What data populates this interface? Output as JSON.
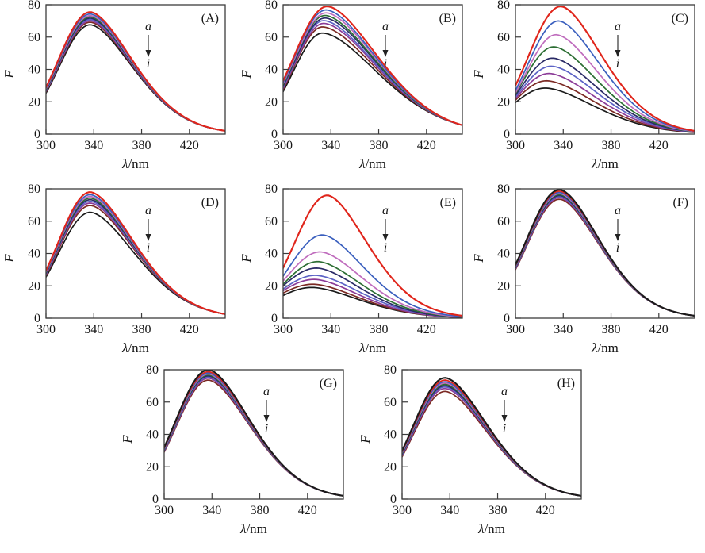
{
  "chart_data": {
    "type": "line",
    "title": "",
    "description": "Fluorescence emission spectra, eight panels (A)-(H), nine curves a to i per panel",
    "axes": {
      "xlabel_symbol": "λ",
      "xlabel_unit": "/nm",
      "ylabel": "F",
      "xticks": [
        300,
        340,
        380,
        420
      ],
      "yticks": [
        0,
        20,
        40,
        60,
        80
      ],
      "xlim": [
        300,
        450
      ],
      "ylim": [
        0,
        80
      ],
      "grid": false
    },
    "annotation": {
      "top": "a",
      "bottom": "i",
      "arrow": "down"
    },
    "palette": {
      "red": "#e0251b",
      "blue": "#3a5fbe",
      "orchid": "#bf6cbd",
      "green": "#2c6e33",
      "navy": "#2a2a66",
      "slate_blue": "#5c63c6",
      "purple": "#8c3c98",
      "dark_red": "#7c2a24",
      "black": "#1a1a1a"
    },
    "panels": [
      {
        "label": "(A)",
        "series": [
          {
            "color": "red",
            "f300": 29,
            "peak": 75.5,
            "lambda_peak": 337,
            "f450": 2
          },
          {
            "color": "blue",
            "f300": 28.5,
            "peak": 74.3,
            "lambda_peak": 337,
            "f450": 2
          },
          {
            "color": "orchid",
            "f300": 28,
            "peak": 73.3,
            "lambda_peak": 337,
            "f450": 2
          },
          {
            "color": "green",
            "f300": 27.6,
            "peak": 72.5,
            "lambda_peak": 337,
            "f450": 2
          },
          {
            "color": "navy",
            "f300": 27.2,
            "peak": 71.7,
            "lambda_peak": 337,
            "f450": 2
          },
          {
            "color": "slate_blue",
            "f300": 26.8,
            "peak": 70.9,
            "lambda_peak": 337,
            "f450": 2
          },
          {
            "color": "purple",
            "f300": 26.4,
            "peak": 70.1,
            "lambda_peak": 337,
            "f450": 2
          },
          {
            "color": "dark_red",
            "f300": 26,
            "peak": 69.2,
            "lambda_peak": 337,
            "f450": 2
          },
          {
            "color": "black",
            "f300": 25.3,
            "peak": 67.6,
            "lambda_peak": 337,
            "f450": 2
          }
        ]
      },
      {
        "label": "(B)",
        "series": [
          {
            "color": "red",
            "f300": 33,
            "peak": 79,
            "lambda_peak": 337,
            "f450": 5.5
          },
          {
            "color": "blue",
            "f300": 32,
            "peak": 76.8,
            "lambda_peak": 336,
            "f450": 5.5
          },
          {
            "color": "orchid",
            "f300": 31.2,
            "peak": 75,
            "lambda_peak": 336,
            "f450": 5.5
          },
          {
            "color": "green",
            "f300": 30.4,
            "peak": 73.4,
            "lambda_peak": 335,
            "f450": 5.5
          },
          {
            "color": "navy",
            "f300": 29.7,
            "peak": 71.8,
            "lambda_peak": 335,
            "f450": 5.5
          },
          {
            "color": "slate_blue",
            "f300": 29,
            "peak": 70.2,
            "lambda_peak": 334,
            "f450": 5.5
          },
          {
            "color": "purple",
            "f300": 28.2,
            "peak": 68.5,
            "lambda_peak": 334,
            "f450": 5.5
          },
          {
            "color": "dark_red",
            "f300": 27.4,
            "peak": 66.3,
            "lambda_peak": 333,
            "f450": 5.5
          },
          {
            "color": "black",
            "f300": 26.2,
            "peak": 62.5,
            "lambda_peak": 333,
            "f450": 5.5
          }
        ]
      },
      {
        "label": "(C)",
        "series": [
          {
            "color": "red",
            "f300": 30,
            "peak": 79,
            "lambda_peak": 338,
            "f450": 2
          },
          {
            "color": "blue",
            "f300": 27,
            "peak": 70,
            "lambda_peak": 336,
            "f450": 1.8
          },
          {
            "color": "orchid",
            "f300": 25.5,
            "peak": 61.5,
            "lambda_peak": 334,
            "f450": 1.6
          },
          {
            "color": "green",
            "f300": 25,
            "peak": 54,
            "lambda_peak": 332,
            "f450": 1.5
          },
          {
            "color": "navy",
            "f300": 24,
            "peak": 47,
            "lambda_peak": 331,
            "f450": 1.4
          },
          {
            "color": "slate_blue",
            "f300": 23,
            "peak": 42,
            "lambda_peak": 330,
            "f450": 1.3
          },
          {
            "color": "purple",
            "f300": 22,
            "peak": 37.5,
            "lambda_peak": 328,
            "f450": 1.2
          },
          {
            "color": "dark_red",
            "f300": 21,
            "peak": 33,
            "lambda_peak": 326,
            "f450": 1.1
          },
          {
            "color": "black",
            "f300": 19.5,
            "peak": 28.5,
            "lambda_peak": 325,
            "f450": 1
          }
        ]
      },
      {
        "label": "(D)",
        "series": [
          {
            "color": "red",
            "f300": 29.5,
            "peak": 78,
            "lambda_peak": 337,
            "f450": 2.5
          },
          {
            "color": "blue",
            "f300": 29,
            "peak": 76.4,
            "lambda_peak": 337,
            "f450": 2.5
          },
          {
            "color": "orchid",
            "f300": 28.6,
            "peak": 75.3,
            "lambda_peak": 337,
            "f450": 2.5
          },
          {
            "color": "green",
            "f300": 28.2,
            "peak": 74.3,
            "lambda_peak": 337,
            "f450": 2.5
          },
          {
            "color": "navy",
            "f300": 27.8,
            "peak": 73.3,
            "lambda_peak": 337,
            "f450": 2.5
          },
          {
            "color": "slate_blue",
            "f300": 27.4,
            "peak": 72.3,
            "lambda_peak": 337,
            "f450": 2.5
          },
          {
            "color": "purple",
            "f300": 27,
            "peak": 71.2,
            "lambda_peak": 337,
            "f450": 2.5
          },
          {
            "color": "dark_red",
            "f300": 26.4,
            "peak": 69.7,
            "lambda_peak": 337,
            "f450": 2.5
          },
          {
            "color": "black",
            "f300": 25.4,
            "peak": 65.5,
            "lambda_peak": 337,
            "f450": 2.5
          }
        ]
      },
      {
        "label": "(E)",
        "series": [
          {
            "color": "red",
            "f300": 31,
            "peak": 76,
            "lambda_peak": 337,
            "f450": 1.5
          },
          {
            "color": "blue",
            "f300": 26,
            "peak": 51.5,
            "lambda_peak": 333,
            "f450": 1
          },
          {
            "color": "orchid",
            "f300": 23,
            "peak": 41,
            "lambda_peak": 331,
            "f450": 0.8
          },
          {
            "color": "green",
            "f300": 21,
            "peak": 35,
            "lambda_peak": 329,
            "f450": 0.7
          },
          {
            "color": "navy",
            "f300": 20,
            "peak": 31,
            "lambda_peak": 328,
            "f450": 0.6
          },
          {
            "color": "slate_blue",
            "f300": 18,
            "peak": 26.5,
            "lambda_peak": 327,
            "f450": 0.6
          },
          {
            "color": "purple",
            "f300": 17,
            "peak": 24,
            "lambda_peak": 326,
            "f450": 0.5
          },
          {
            "color": "dark_red",
            "f300": 15.5,
            "peak": 21,
            "lambda_peak": 325,
            "f450": 0.5
          },
          {
            "color": "black",
            "f300": 14,
            "peak": 19,
            "lambda_peak": 324,
            "f450": 0.5
          }
        ]
      },
      {
        "label": "(F)",
        "series": [
          {
            "color": "black",
            "f300": 33,
            "peak": 79.5,
            "lambda_peak": 337,
            "f450": 1.5
          },
          {
            "color": "red",
            "f300": 32.5,
            "peak": 78.6,
            "lambda_peak": 337,
            "f450": 1.5
          },
          {
            "color": "blue",
            "f300": 32.1,
            "peak": 77.8,
            "lambda_peak": 337,
            "f450": 1.5
          },
          {
            "color": "orchid",
            "f300": 31.8,
            "peak": 77.1,
            "lambda_peak": 337,
            "f450": 1.5
          },
          {
            "color": "green",
            "f300": 31.5,
            "peak": 76.5,
            "lambda_peak": 337,
            "f450": 1.5
          },
          {
            "color": "navy",
            "f300": 31.2,
            "peak": 75.9,
            "lambda_peak": 337,
            "f450": 1.5
          },
          {
            "color": "slate_blue",
            "f300": 30.9,
            "peak": 75.3,
            "lambda_peak": 337,
            "f450": 1.5
          },
          {
            "color": "purple",
            "f300": 30.5,
            "peak": 74.6,
            "lambda_peak": 337,
            "f450": 1.5
          },
          {
            "color": "dark_red",
            "f300": 30,
            "peak": 73.6,
            "lambda_peak": 337,
            "f450": 1.5
          }
        ]
      },
      {
        "label": "(G)",
        "series": [
          {
            "color": "black",
            "f300": 32,
            "peak": 80,
            "lambda_peak": 337,
            "f450": 2
          },
          {
            "color": "red",
            "f300": 31.5,
            "peak": 78.8,
            "lambda_peak": 337,
            "f450": 2
          },
          {
            "color": "blue",
            "f300": 31.1,
            "peak": 78,
            "lambda_peak": 337,
            "f450": 2
          },
          {
            "color": "orchid",
            "f300": 30.8,
            "peak": 77.4,
            "lambda_peak": 337,
            "f450": 2
          },
          {
            "color": "green",
            "f300": 30.5,
            "peak": 76.8,
            "lambda_peak": 337,
            "f450": 2
          },
          {
            "color": "navy",
            "f300": 30.2,
            "peak": 76.2,
            "lambda_peak": 337,
            "f450": 2
          },
          {
            "color": "slate_blue",
            "f300": 29.9,
            "peak": 75.5,
            "lambda_peak": 337,
            "f450": 2
          },
          {
            "color": "purple",
            "f300": 29.5,
            "peak": 74.8,
            "lambda_peak": 337,
            "f450": 2
          },
          {
            "color": "dark_red",
            "f300": 29,
            "peak": 73.6,
            "lambda_peak": 337,
            "f450": 2
          }
        ]
      },
      {
        "label": "(H)",
        "series": [
          {
            "color": "black",
            "f300": 30,
            "peak": 75,
            "lambda_peak": 336,
            "f450": 2
          },
          {
            "color": "red",
            "f300": 29.4,
            "peak": 73.6,
            "lambda_peak": 336,
            "f450": 2
          },
          {
            "color": "blue",
            "f300": 29,
            "peak": 72.6,
            "lambda_peak": 336,
            "f450": 2
          },
          {
            "color": "orchid",
            "f300": 28.6,
            "peak": 71.8,
            "lambda_peak": 336,
            "f450": 2
          },
          {
            "color": "green",
            "f300": 28.2,
            "peak": 71,
            "lambda_peak": 336,
            "f450": 2
          },
          {
            "color": "navy",
            "f300": 27.8,
            "peak": 70.2,
            "lambda_peak": 336,
            "f450": 2
          },
          {
            "color": "slate_blue",
            "f300": 27.4,
            "peak": 69.4,
            "lambda_peak": 336,
            "f450": 2
          },
          {
            "color": "purple",
            "f300": 26.9,
            "peak": 68.4,
            "lambda_peak": 336,
            "f450": 2
          },
          {
            "color": "dark_red",
            "f300": 26.1,
            "peak": 66.6,
            "lambda_peak": 336,
            "f450": 2
          }
        ]
      }
    ]
  }
}
